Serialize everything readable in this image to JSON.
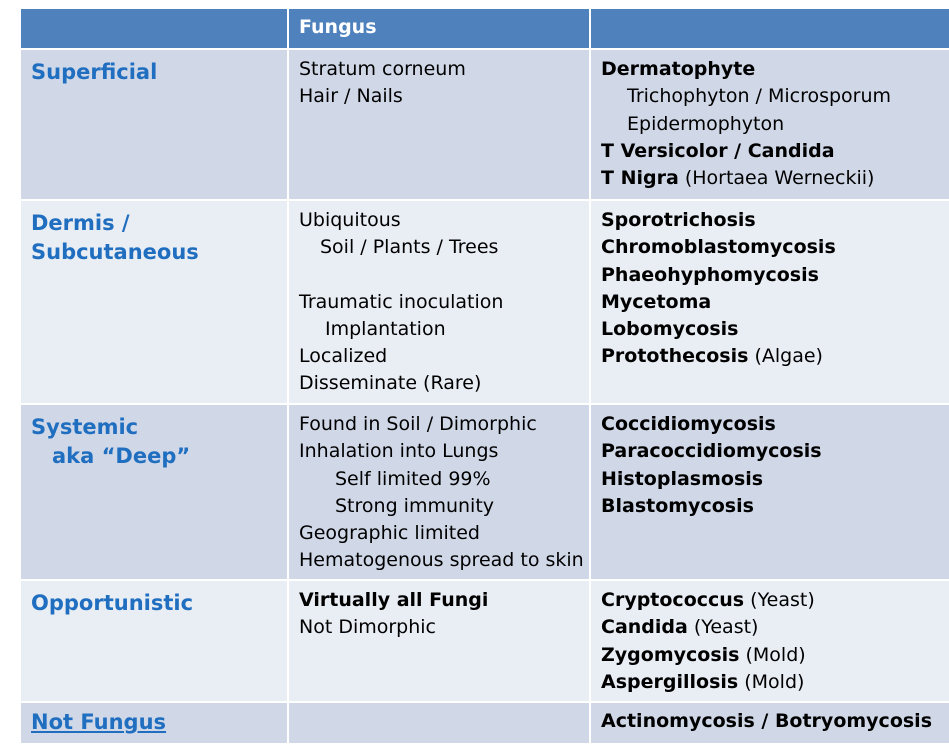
{
  "header": {
    "col1": "",
    "col2": "Fungus",
    "col3": ""
  },
  "rows": [
    {
      "category": [
        "Superficial"
      ],
      "fungus": [
        "Stratum corneum",
        "Hair / Nails"
      ],
      "examples": {
        "l1_bold": "Dermatophyte",
        "l2": "Trichophyton / Microsporum",
        "l3": "Epidermophyton",
        "l4_bold": "T Versicolor / Candida",
        "l5_bold": "T Nigra",
        "l5_rest": " (Hortaea Werneckii)"
      }
    },
    {
      "category": [
        "Dermis /",
        "Subcutaneous"
      ],
      "fungus": [
        "Ubiquitous",
        "Soil / Plants / Trees",
        "Traumatic inoculation",
        "Implantation",
        "Localized",
        "Disseminate (Rare)"
      ],
      "examples": {
        "l1": "Sporotrichosis",
        "l2": "Chromoblastomycosis",
        "l3": "Phaeohyphomycosis",
        "l4": "Mycetoma",
        "l5": "Lobomycosis",
        "l6_bold": "Protothecosis",
        "l6_rest": " (Algae)"
      }
    },
    {
      "category": [
        "Systemic",
        "aka “Deep”"
      ],
      "fungus": [
        "Found in Soil / Dimorphic",
        "Inhalation into Lungs",
        "Self limited 99%",
        "Strong immunity",
        "Geographic limited",
        "Hematogenous spread to skin"
      ],
      "examples": [
        "Coccidiomycosis",
        "Paracoccidiomycosis",
        "Histoplasmosis",
        "Blastomycosis"
      ]
    },
    {
      "category": [
        "Opportunistic"
      ],
      "fungus_bold": "Virtually all Fungi",
      "fungus": [
        "Not Dimorphic"
      ],
      "examples": [
        {
          "bold": "Cryptococcus",
          "rest": " (Yeast)"
        },
        {
          "bold": "Candida",
          "rest": " (Yeast)"
        },
        {
          "bold": "Zygomycosis",
          "rest": " (Mold)"
        },
        {
          "bold": "Aspergillosis",
          "rest": " (Mold)"
        }
      ]
    },
    {
      "category": [
        "Not Fungus"
      ],
      "fungus": "",
      "examples": "Actinomycosis / Botryomycosis"
    }
  ]
}
